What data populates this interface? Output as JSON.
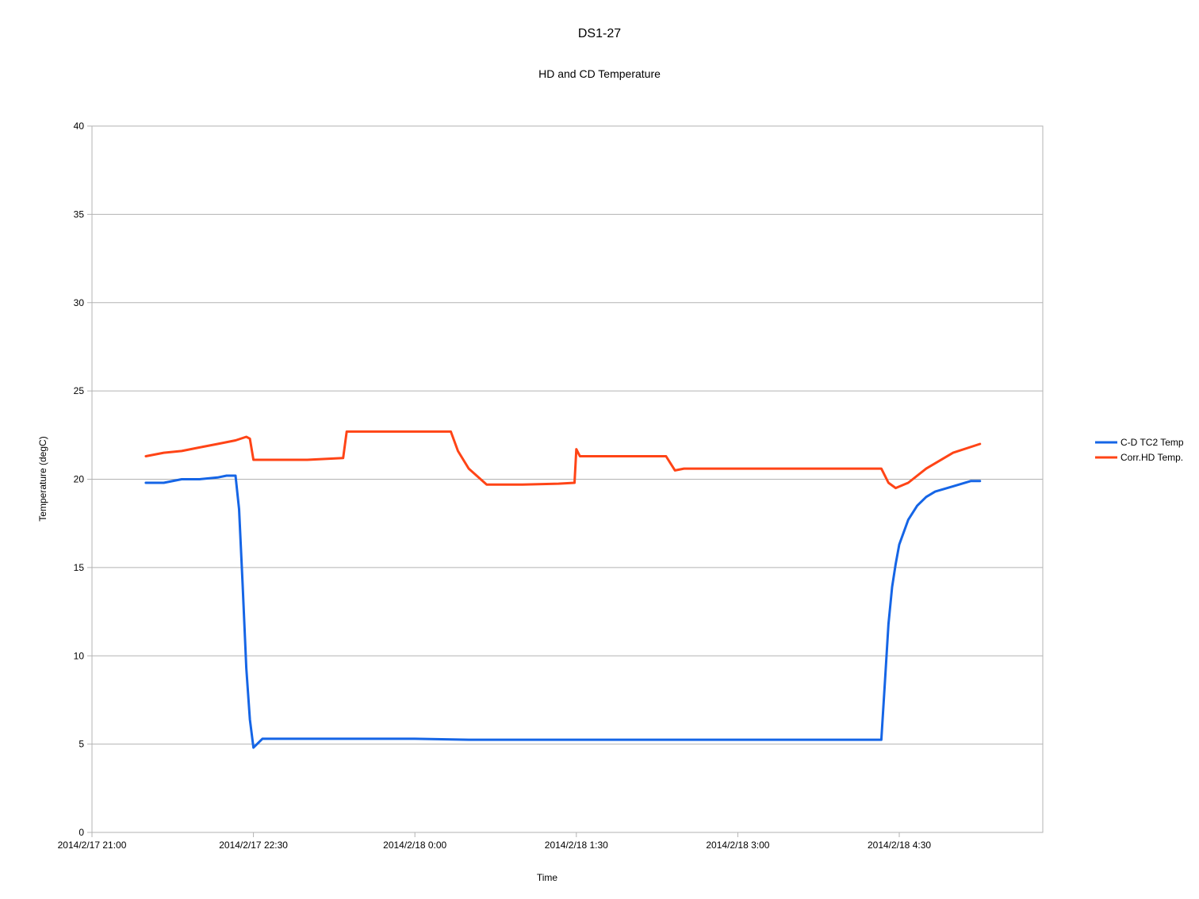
{
  "chart_data": {
    "type": "line",
    "title": "DS1-27",
    "subtitle": "HD and CD Temperature",
    "xlabel": "Time",
    "ylabel": "Temperature (degC)",
    "ylim": [
      0,
      40
    ],
    "yticks": [
      0,
      5,
      10,
      15,
      20,
      25,
      30,
      35,
      40
    ],
    "xlim": [
      "2014/2/17 21:00",
      "2014/2/18 5:50"
    ],
    "xticks": [
      "2014/2/17 21:00",
      "2014/2/17 22:30",
      "2014/2/18 0:00",
      "2014/2/18 1:30",
      "2014/2/18 3:00",
      "2014/2/18 4:30"
    ],
    "grid": "horizontal",
    "legend": "right",
    "series": [
      {
        "name": "C-D TC2 Temp",
        "color": "#1565e6",
        "x": [
          "2014/2/17 21:30",
          "2014/2/17 21:40",
          "2014/2/17 21:50",
          "2014/2/17 22:00",
          "2014/2/17 22:10",
          "2014/2/17 22:15",
          "2014/2/17 22:18",
          "2014/2/17 22:20",
          "2014/2/17 22:22",
          "2014/2/17 22:24",
          "2014/2/17 22:26",
          "2014/2/17 22:28",
          "2014/2/17 22:30",
          "2014/2/17 22:35",
          "2014/2/17 23:00",
          "2014/2/17 23:30",
          "2014/2/18 0:00",
          "2014/2/18 0:30",
          "2014/2/18 1:00",
          "2014/2/18 1:30",
          "2014/2/18 2:00",
          "2014/2/18 2:30",
          "2014/2/18 3:00",
          "2014/2/18 3:30",
          "2014/2/18 4:00",
          "2014/2/18 4:20",
          "2014/2/18 4:22",
          "2014/2/18 4:24",
          "2014/2/18 4:26",
          "2014/2/18 4:28",
          "2014/2/18 4:30",
          "2014/2/18 4:35",
          "2014/2/18 4:40",
          "2014/2/18 4:45",
          "2014/2/18 4:50",
          "2014/2/18 5:00",
          "2014/2/18 5:10",
          "2014/2/18 5:15"
        ],
        "values": [
          19.8,
          19.8,
          20.0,
          20.0,
          20.1,
          20.2,
          20.2,
          20.2,
          18.3,
          14.0,
          9.3,
          6.4,
          4.8,
          5.3,
          5.3,
          5.3,
          5.3,
          5.25,
          5.25,
          5.25,
          5.25,
          5.25,
          5.25,
          5.25,
          5.25,
          5.25,
          8.5,
          11.8,
          13.9,
          15.2,
          16.3,
          17.7,
          18.5,
          19.0,
          19.3,
          19.6,
          19.9,
          19.9
        ]
      },
      {
        "name": "Corr.HD Temp.",
        "color": "#ff4416",
        "x": [
          "2014/2/17 21:30",
          "2014/2/17 21:40",
          "2014/2/17 21:50",
          "2014/2/17 22:00",
          "2014/2/17 22:10",
          "2014/2/17 22:20",
          "2014/2/17 22:26",
          "2014/2/17 22:28",
          "2014/2/17 22:30",
          "2014/2/17 22:40",
          "2014/2/17 23:00",
          "2014/2/17 23:20",
          "2014/2/17 23:22",
          "2014/2/17 23:40",
          "2014/2/18 0:00",
          "2014/2/18 0:20",
          "2014/2/18 0:24",
          "2014/2/18 0:30",
          "2014/2/18 0:40",
          "2014/2/18 1:00",
          "2014/2/18 1:20",
          "2014/2/18 1:29",
          "2014/2/18 1:30",
          "2014/2/18 1:32",
          "2014/2/18 1:50",
          "2014/2/18 2:20",
          "2014/2/18 2:25",
          "2014/2/18 2:30",
          "2014/2/18 3:00",
          "2014/2/18 3:30",
          "2014/2/18 4:00",
          "2014/2/18 4:20",
          "2014/2/18 4:24",
          "2014/2/18 4:28",
          "2014/2/18 4:35",
          "2014/2/18 4:45",
          "2014/2/18 5:00",
          "2014/2/18 5:15"
        ],
        "values": [
          21.3,
          21.5,
          21.6,
          21.8,
          22.0,
          22.2,
          22.4,
          22.3,
          21.1,
          21.1,
          21.1,
          21.2,
          22.7,
          22.7,
          22.7,
          22.7,
          21.6,
          20.6,
          19.7,
          19.7,
          19.75,
          19.8,
          21.7,
          21.3,
          21.3,
          21.3,
          20.5,
          20.6,
          20.6,
          20.6,
          20.6,
          20.6,
          19.8,
          19.5,
          19.8,
          20.6,
          21.5,
          22.0
        ]
      }
    ]
  }
}
